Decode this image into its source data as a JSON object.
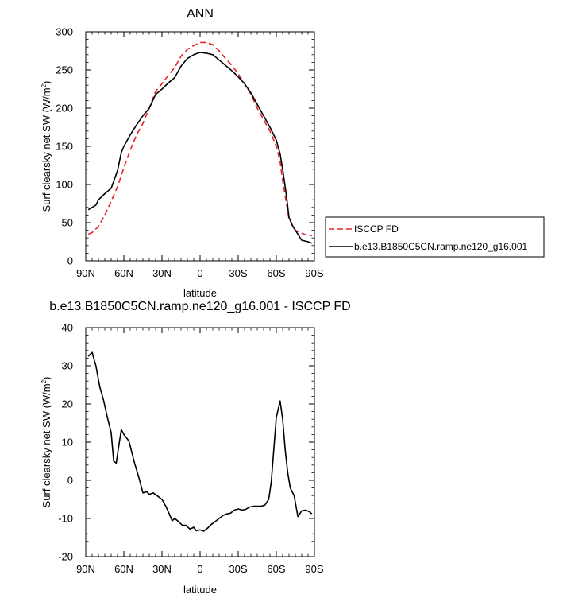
{
  "chart_data": [
    {
      "type": "line",
      "title": "ANN",
      "xlabel": "latitude",
      "ylabel": "Surf clearsky net SW (W/m",
      "ylabel_sup": "2",
      "ylabel_close": ")",
      "xlim": [
        90,
        -90
      ],
      "ylim": [
        0,
        300
      ],
      "x_tick_values": [
        90,
        60,
        30,
        0,
        -30,
        -60,
        -90
      ],
      "x_tick_labels": [
        "90N",
        "60N",
        "30N",
        "0",
        "30S",
        "60S",
        "90S"
      ],
      "y_tick_values": [
        0,
        50,
        100,
        150,
        200,
        250,
        300
      ],
      "y_tick_labels": [
        "0",
        "50",
        "100",
        "150",
        "200",
        "250",
        "300"
      ],
      "grid": false,
      "legend_position": "right",
      "series": [
        {
          "name": "ISCCP FD",
          "color": "#e8202a",
          "dash": "dashed",
          "points": [
            [
              88,
              35
            ],
            [
              85,
              37
            ],
            [
              80,
              45
            ],
            [
              75,
              60
            ],
            [
              70,
              78
            ],
            [
              65,
              97
            ],
            [
              60,
              122
            ],
            [
              55,
              145
            ],
            [
              50,
              165
            ],
            [
              45,
              180
            ],
            [
              40,
              200
            ],
            [
              35,
              222
            ],
            [
              30,
              232
            ],
            [
              25,
              243
            ],
            [
              20,
              253
            ],
            [
              15,
              268
            ],
            [
              10,
              277
            ],
            [
              5,
              282
            ],
            [
              0,
              286
            ],
            [
              -5,
              286
            ],
            [
              -10,
              283
            ],
            [
              -15,
              275
            ],
            [
              -20,
              265
            ],
            [
              -25,
              256
            ],
            [
              -30,
              245
            ],
            [
              -35,
              232
            ],
            [
              -40,
              218
            ],
            [
              -45,
              200
            ],
            [
              -50,
              185
            ],
            [
              -55,
              170
            ],
            [
              -60,
              150
            ],
            [
              -63,
              130
            ],
            [
              -65,
              105
            ],
            [
              -68,
              75
            ],
            [
              -70,
              55
            ],
            [
              -75,
              40
            ],
            [
              -80,
              36
            ],
            [
              -85,
              33
            ],
            [
              -88,
              33
            ]
          ]
        },
        {
          "name": "b.e13.B1850C5CN.ramp.ne120_g16.001",
          "color": "#000000",
          "dash": "solid",
          "points": [
            [
              88,
              67
            ],
            [
              85,
              70
            ],
            [
              82,
              73
            ],
            [
              80,
              80
            ],
            [
              75,
              88
            ],
            [
              70,
              95
            ],
            [
              65,
              118
            ],
            [
              62,
              142
            ],
            [
              60,
              150
            ],
            [
              55,
              165
            ],
            [
              50,
              178
            ],
            [
              45,
              190
            ],
            [
              40,
              200
            ],
            [
              35,
              218
            ],
            [
              30,
              225
            ],
            [
              25,
              233
            ],
            [
              20,
              240
            ],
            [
              15,
              255
            ],
            [
              10,
              265
            ],
            [
              5,
              270
            ],
            [
              0,
              273
            ],
            [
              -5,
              272
            ],
            [
              -10,
              270
            ],
            [
              -15,
              263
            ],
            [
              -20,
              256
            ],
            [
              -25,
              249
            ],
            [
              -30,
              241
            ],
            [
              -35,
              232
            ],
            [
              -40,
              220
            ],
            [
              -45,
              205
            ],
            [
              -50,
              190
            ],
            [
              -55,
              175
            ],
            [
              -60,
              158
            ],
            [
              -63,
              140
            ],
            [
              -65,
              120
            ],
            [
              -68,
              85
            ],
            [
              -70,
              57
            ],
            [
              -73,
              45
            ],
            [
              -75,
              40
            ],
            [
              -80,
              27
            ],
            [
              -85,
              25
            ],
            [
              -88,
              23
            ]
          ]
        }
      ]
    },
    {
      "type": "line",
      "title": "b.e13.B1850C5CN.ramp.ne120_g16.001 - ISCCP FD",
      "xlabel": "latitude",
      "ylabel": "Surf clearsky net SW (W/m",
      "ylabel_sup": "2",
      "ylabel_close": ")",
      "xlim": [
        90,
        -90
      ],
      "ylim": [
        -20,
        40
      ],
      "x_tick_values": [
        90,
        60,
        30,
        0,
        -30,
        -60,
        -90
      ],
      "x_tick_labels": [
        "90N",
        "60N",
        "30N",
        "0",
        "30S",
        "60S",
        "90S"
      ],
      "y_tick_values": [
        -20,
        -10,
        0,
        10,
        20,
        30,
        40
      ],
      "y_tick_labels": [
        "-20",
        "-10",
        "0",
        "10",
        "20",
        "30",
        "40"
      ],
      "grid": false,
      "series": [
        {
          "color": "#000000",
          "dash": "solid",
          "points": [
            [
              88,
              32.5
            ],
            [
              85,
              33.5
            ],
            [
              82,
              30
            ],
            [
              79,
              24.5
            ],
            [
              76,
              21
            ],
            [
              73,
              16.5
            ],
            [
              70,
              12.5
            ],
            [
              68,
              5
            ],
            [
              66,
              4.5
            ],
            [
              64,
              9
            ],
            [
              62,
              13.3
            ],
            [
              60,
              12
            ],
            [
              56,
              10.3
            ],
            [
              52,
              5
            ],
            [
              48,
              0.5
            ],
            [
              45,
              -3.3
            ],
            [
              42,
              -3
            ],
            [
              40,
              -3.7
            ],
            [
              37,
              -3.3
            ],
            [
              34,
              -4
            ],
            [
              30,
              -5
            ],
            [
              27,
              -6.8
            ],
            [
              24,
              -9
            ],
            [
              22,
              -10.6
            ],
            [
              20,
              -10
            ],
            [
              17,
              -10.8
            ],
            [
              14,
              -11.8
            ],
            [
              11,
              -11.8
            ],
            [
              8,
              -12.8
            ],
            [
              5,
              -12.3
            ],
            [
              3,
              -13.2
            ],
            [
              0,
              -13
            ],
            [
              -3,
              -13.3
            ],
            [
              -6,
              -12.5
            ],
            [
              -9,
              -11.5
            ],
            [
              -12,
              -10.8
            ],
            [
              -15,
              -10
            ],
            [
              -18,
              -9.2
            ],
            [
              -21,
              -8.8
            ],
            [
              -24,
              -8.6
            ],
            [
              -27,
              -7.8
            ],
            [
              -30,
              -7.5
            ],
            [
              -33,
              -7.8
            ],
            [
              -36,
              -7.6
            ],
            [
              -39,
              -7
            ],
            [
              -42,
              -6.8
            ],
            [
              -45,
              -6.8
            ],
            [
              -48,
              -6.8
            ],
            [
              -51,
              -6.5
            ],
            [
              -54,
              -5
            ],
            [
              -56,
              -0.5
            ],
            [
              -58,
              8
            ],
            [
              -60,
              16.5
            ],
            [
              -63,
              20.8
            ],
            [
              -65,
              16
            ],
            [
              -67,
              8
            ],
            [
              -69,
              2
            ],
            [
              -71,
              -2
            ],
            [
              -74,
              -4
            ],
            [
              -77,
              -9.5
            ],
            [
              -80,
              -8
            ],
            [
              -83,
              -7.8
            ],
            [
              -86,
              -8.2
            ],
            [
              -88,
              -8.8
            ]
          ]
        }
      ]
    }
  ]
}
